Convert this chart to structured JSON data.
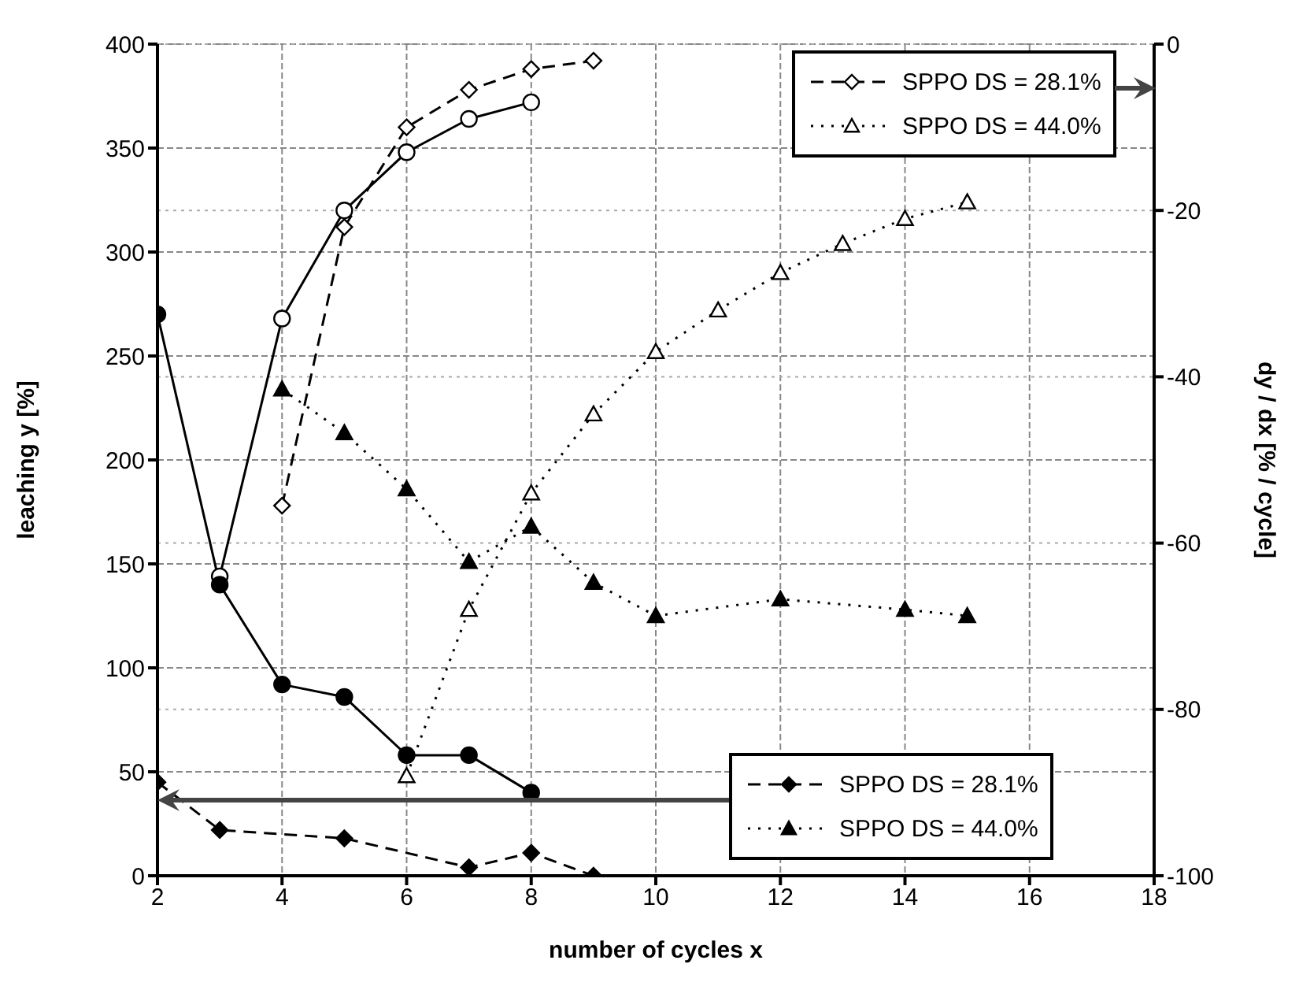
{
  "chart_data": {
    "type": "line",
    "xlabel": "number of cycles x",
    "ylabel": "leaching y [%]",
    "y2label": "dy / dx [% / cycle]",
    "xlim": [
      2,
      18
    ],
    "xticks": [
      2,
      4,
      6,
      8,
      10,
      12,
      14,
      16,
      18
    ],
    "ylim": [
      0,
      400
    ],
    "yticks": [
      0,
      50,
      100,
      150,
      200,
      250,
      300,
      350,
      400
    ],
    "y2lim": [
      -100,
      0
    ],
    "y2ticks": [
      -100,
      -80,
      -60,
      -40,
      -20,
      0
    ],
    "grid": true,
    "legend": "right",
    "series": [
      {
        "color": "#000000",
        "axis": "y2",
        "marker": "circle",
        "line_style": "solid",
        "x": [
          3,
          4,
          5,
          6,
          7,
          8
        ],
        "values": [
          -64,
          -33,
          -20,
          -13,
          -9,
          -7
        ]
      },
      {
        "name": "SPPO DS = 28.1%",
        "color": "#000000",
        "axis": "y2",
        "marker": "diamond",
        "line_style": "dashed",
        "x": [
          4,
          5,
          6,
          7,
          8,
          9
        ],
        "values": [
          -55.5,
          -22,
          -10,
          -5.5,
          -3,
          -2
        ]
      },
      {
        "name": "SPPO DS = 44.0%",
        "color": "#000000",
        "axis": "y2",
        "marker": "triangle",
        "line_style": "dotted",
        "x": [
          6,
          7,
          8,
          9,
          10,
          11,
          12,
          13,
          14,
          15
        ],
        "values": [
          -88,
          -68,
          -54,
          -44.5,
          -37,
          -32,
          -27.5,
          -24,
          -21,
          -19
        ]
      },
      {
        "color": "#000000",
        "axis": "y",
        "marker": "circle",
        "line_style": "solid",
        "x": [
          2,
          3,
          4,
          5,
          6,
          7,
          8
        ],
        "values": [
          270,
          140,
          92,
          86,
          58,
          58,
          40
        ]
      },
      {
        "name": "SPPO DS = 28.1%",
        "color": "#000000",
        "axis": "y",
        "marker": "diamond",
        "line_style": "dashed",
        "x": [
          2,
          3,
          5,
          7,
          8,
          9
        ],
        "values": [
          45,
          22,
          18,
          4,
          11,
          0
        ]
      },
      {
        "name": "SPPO DS = 44.0%",
        "color": "#000000",
        "axis": "y",
        "marker": "triangle",
        "line_style": "dotted",
        "x": [
          4,
          5,
          6,
          7,
          8,
          9,
          10,
          12,
          14,
          15
        ],
        "values": [
          234,
          213,
          186,
          151,
          168,
          141,
          125,
          133,
          128,
          125
        ]
      }
    ]
  }
}
